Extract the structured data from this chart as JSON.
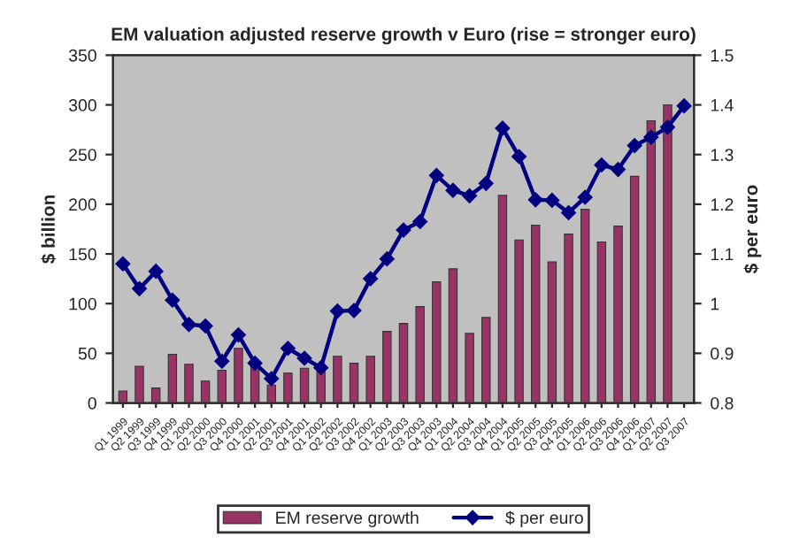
{
  "chart_data": {
    "type": "bar",
    "title": "EM valuation adjusted reserve growth v Euro (rise = stronger euro)",
    "categories": [
      "Q1 1999",
      "Q2 1999",
      "Q3 1999",
      "Q4 1999",
      "Q1 2000",
      "Q2 2000",
      "Q3 2000",
      "Q4 2000",
      "Q1 2001",
      "Q2 2001",
      "Q3 2001",
      "Q4 2001",
      "Q1 2002",
      "Q2 2002",
      "Q3 2002",
      "Q4 2002",
      "Q1 2003",
      "Q2 2003",
      "Q3 2003",
      "Q4 2003",
      "Q1 2004",
      "Q2 2004",
      "Q3 2004",
      "Q4 2004",
      "Q1 2005",
      "Q2 2005",
      "Q3 2005",
      "Q4 2005",
      "Q1 2006",
      "Q2 2006",
      "Q3 2006",
      "Q4 2006",
      "Q1 2007",
      "Q2 2007",
      "Q3 2007"
    ],
    "series": [
      {
        "name": "EM reserve growth",
        "color": "#993366",
        "values": [
          12,
          37,
          15,
          49,
          39,
          22,
          33,
          55,
          38,
          18,
          30,
          35,
          35,
          47,
          40,
          47,
          72,
          80,
          97,
          122,
          135,
          70,
          86,
          209,
          164,
          179,
          142,
          170,
          195,
          162,
          178,
          228,
          284,
          300,
          null
        ]
      },
      {
        "name": "$ per euro",
        "type": "line",
        "axis": "y2",
        "color": "#000080",
        "marker": "diamond",
        "values": [
          1.08,
          1.03,
          1.065,
          1.007,
          0.958,
          0.955,
          0.884,
          0.937,
          0.88,
          0.849,
          0.91,
          0.89,
          0.871,
          0.985,
          0.986,
          1.05,
          1.09,
          1.148,
          1.165,
          1.258,
          1.228,
          1.217,
          1.242,
          1.353,
          1.296,
          1.209,
          1.208,
          1.183,
          1.214,
          1.279,
          1.27,
          1.318,
          1.335,
          1.355,
          1.398
        ]
      }
    ],
    "ylabel": "$ billion",
    "y2label": "$ per euro",
    "ylim": [
      0,
      350
    ],
    "yticks": [
      0,
      50,
      100,
      150,
      200,
      250,
      300,
      350
    ],
    "y2lim": [
      0.8,
      1.5
    ],
    "y2ticks": [
      0.8,
      0.9,
      1,
      1.1,
      1.2,
      1.3,
      1.4,
      1.5
    ],
    "grid": false,
    "legend": "bottom"
  }
}
